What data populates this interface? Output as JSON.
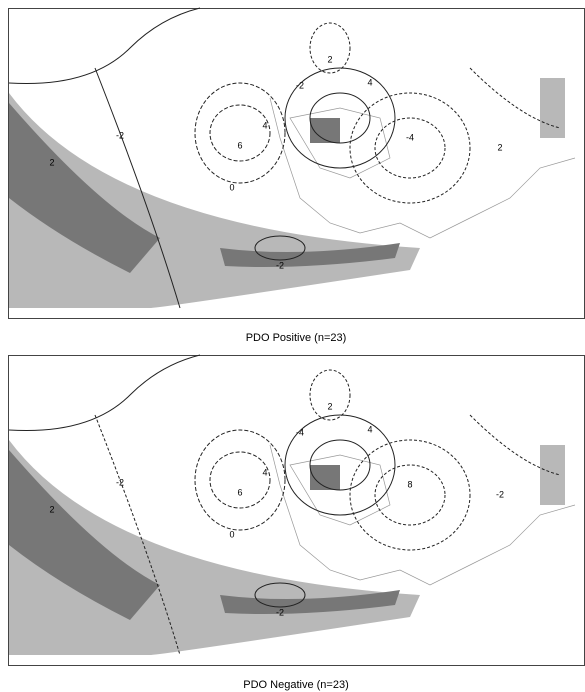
{
  "panels": [
    {
      "caption": "PDO Positive (n=23)",
      "contour_labels": [
        "-2",
        "2",
        "0",
        "4",
        "6",
        "-2",
        "2",
        "-4",
        "4",
        "-2",
        "2"
      ]
    },
    {
      "caption": "PDO Negative (n=23)",
      "contour_labels": [
        "-2",
        "2",
        "0",
        "4",
        "6",
        "-4",
        "2",
        "8",
        "4",
        "-2",
        "-2"
      ]
    }
  ]
}
